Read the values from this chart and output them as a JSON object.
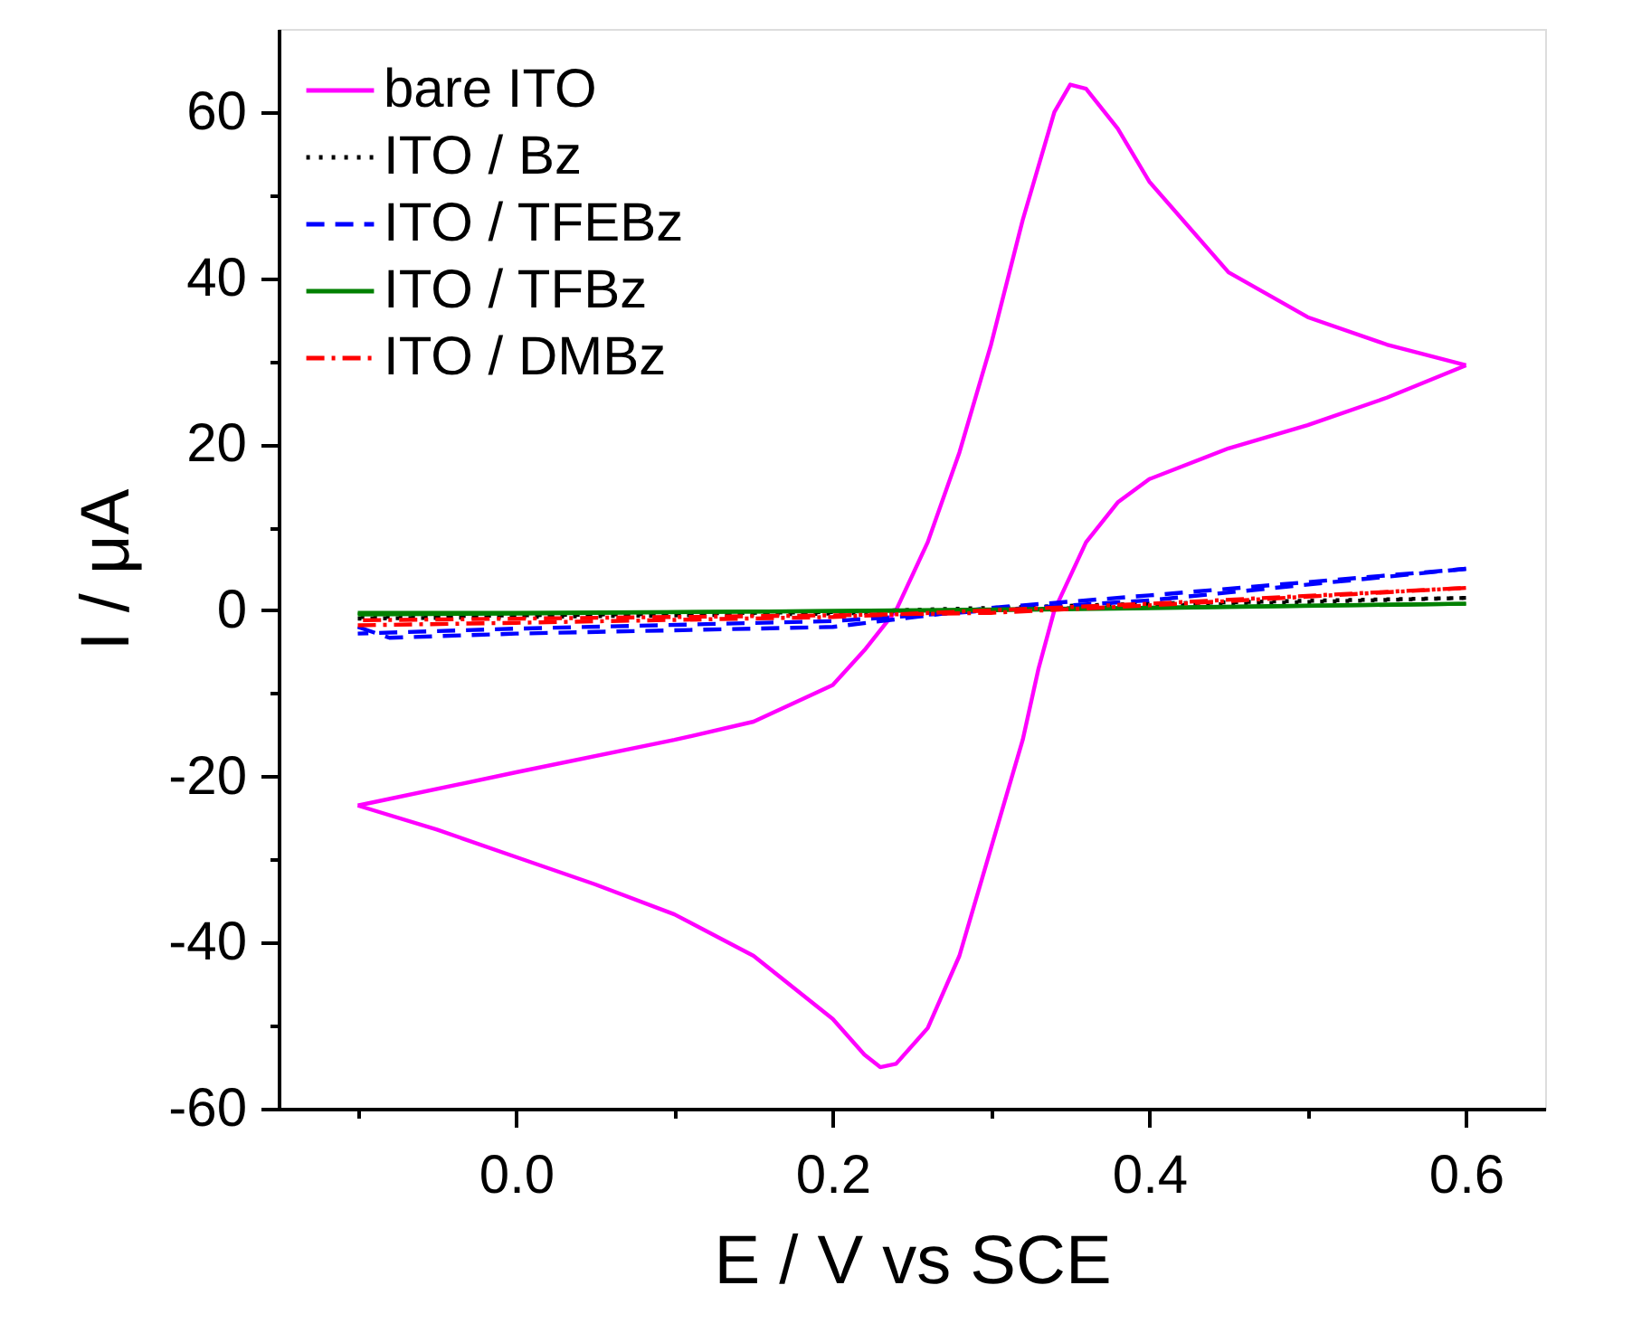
{
  "chart_data": {
    "type": "line",
    "xlabel": "E / V vs SCE",
    "ylabel": "I / μA",
    "xlim": [
      -0.15,
      0.65
    ],
    "ylim": [
      -60,
      70
    ],
    "xticks": [
      {
        "value": -0.1,
        "label": null
      },
      {
        "value": 0.0,
        "label": "0.0"
      },
      {
        "value": 0.1,
        "label": null
      },
      {
        "value": 0.2,
        "label": "0.2"
      },
      {
        "value": 0.3,
        "label": null
      },
      {
        "value": 0.4,
        "label": "0.4"
      },
      {
        "value": 0.5,
        "label": null
      },
      {
        "value": 0.6,
        "label": "0.6"
      }
    ],
    "yticks": [
      -60,
      {
        "value": -50,
        "label": null
      },
      -40,
      {
        "value": -30,
        "label": null
      },
      -20,
      {
        "value": -10,
        "label": null
      },
      0,
      {
        "value": 10,
        "label": null
      },
      20,
      {
        "value": 30,
        "label": null
      },
      40,
      {
        "value": 50,
        "label": null
      },
      60
    ],
    "legend": "top left",
    "grid": false,
    "marker": "none",
    "series": [
      {
        "name": "bare ITO",
        "color": "#ff00ff",
        "line_style": "solid",
        "x": [
          -0.1,
          0.0,
          0.1,
          0.15,
          0.2,
          0.22,
          0.24,
          0.26,
          0.28,
          0.3,
          0.32,
          0.34,
          0.35,
          0.36,
          0.38,
          0.4,
          0.45,
          0.5,
          0.55,
          0.6
        ],
        "values": [
          -23.5,
          -19.5,
          -15.6,
          -13.4,
          -9,
          -4.8,
          0,
          8.2,
          19,
          32,
          47,
          60,
          63.3,
          62.8,
          58,
          51.6,
          40.7,
          35.3,
          32,
          29.5
        ]
      },
      {
        "color": "#ff00ff",
        "line_style": "solid",
        "x": [
          0.6,
          0.55,
          0.5,
          0.45,
          0.4,
          0.38,
          0.36,
          0.34,
          0.33,
          0.32,
          0.3,
          0.28,
          0.26,
          0.24,
          0.23,
          0.22,
          0.2,
          0.15,
          0.1,
          0.05,
          0.0,
          -0.05,
          -0.1
        ],
        "values": [
          29.5,
          25.6,
          22.3,
          19.5,
          15.8,
          13,
          8.2,
          0,
          -7,
          -15.6,
          -28.6,
          -41.6,
          -50.3,
          -54.6,
          -55,
          -53.5,
          -49.2,
          -41.6,
          -36.6,
          -33,
          -29.7,
          -26.4,
          -23.5
        ]
      },
      {
        "name": "ITO / Bz",
        "color": "#000000",
        "line_style": "dotted",
        "x": [
          -0.1,
          0.0,
          0.2,
          0.3,
          0.4,
          0.6
        ],
        "values": [
          -1.0,
          -0.8,
          -0.4,
          0.0,
          0.5,
          1.5
        ]
      },
      {
        "color": "#000000",
        "line_style": "dotted",
        "x": [
          0.6,
          0.4,
          0.2,
          0.0,
          -0.1
        ],
        "values": [
          1.5,
          0.8,
          -0.2,
          -0.6,
          -0.8
        ]
      },
      {
        "name": "ITO / TFEBz",
        "color": "#0000ff",
        "line_style": "dashed",
        "x": [
          -0.1,
          -0.08,
          0.0,
          0.2,
          0.3,
          0.4,
          0.6
        ],
        "values": [
          -2.0,
          -3.3,
          -2.8,
          -2.0,
          0.3,
          1.8,
          5.0
        ]
      },
      {
        "color": "#0000ff",
        "line_style": "dashed",
        "x": [
          0.6,
          0.4,
          0.3,
          0.2,
          0.0,
          -0.1
        ],
        "values": [
          5.0,
          1.2,
          0.0,
          -1.3,
          -2.2,
          -2.8
        ]
      },
      {
        "name": "ITO / TFBz",
        "color": "#008000",
        "line_style": "solid",
        "x": [
          -0.1,
          0.0,
          0.3,
          0.6
        ],
        "values": [
          -0.5,
          -0.4,
          0.1,
          0.8
        ]
      },
      {
        "color": "#008000",
        "line_style": "solid",
        "x": [
          0.6,
          0.3,
          0.0,
          -0.1
        ],
        "values": [
          0.8,
          0.0,
          -0.3,
          -0.3
        ]
      },
      {
        "name": "ITO / DMBz",
        "color": "#ff0000",
        "line_style": "dashdot",
        "x": [
          -0.1,
          0.0,
          0.2,
          0.3,
          0.4,
          0.6
        ],
        "values": [
          -1.8,
          -1.5,
          -0.8,
          0.0,
          0.8,
          2.7
        ]
      },
      {
        "color": "#ff0000",
        "line_style": "dashdot",
        "x": [
          0.6,
          0.4,
          0.3,
          0.2,
          0.0,
          -0.1
        ],
        "values": [
          2.7,
          0.6,
          -0.3,
          -0.6,
          -1.0,
          -1.2
        ]
      }
    ]
  }
}
